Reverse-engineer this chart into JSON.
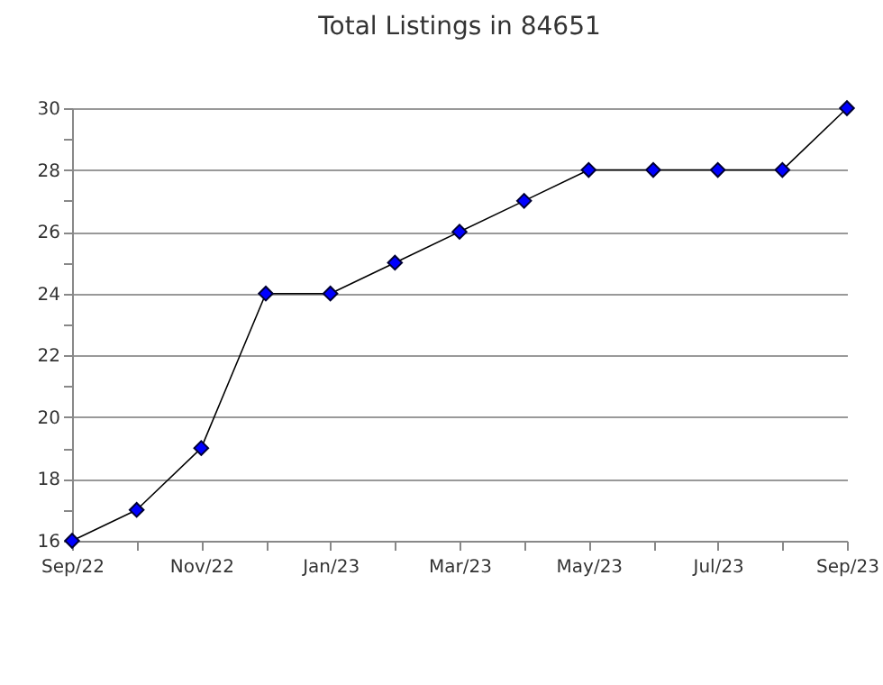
{
  "chart_data": {
    "type": "line",
    "title": "Total Listings in 84651",
    "categories": [
      "Sep/22",
      null,
      "Nov/22",
      null,
      "Jan/23",
      null,
      "Mar/23",
      null,
      "May/23",
      null,
      "Jul/23",
      null,
      "Sep/23"
    ],
    "series": [
      {
        "color": "#0000ff",
        "values": [
          16,
          17,
          19,
          24,
          24,
          25,
          26,
          27,
          28,
          28,
          28,
          28,
          30
        ]
      }
    ],
    "ylim": [
      16,
      30
    ],
    "yticks": [
      16,
      {
        "value": 17,
        "label": null
      },
      18,
      {
        "value": 19,
        "label": null
      },
      20,
      {
        "value": 21,
        "label": null
      },
      22,
      {
        "value": 23,
        "label": null
      },
      24,
      {
        "value": 25,
        "label": null
      },
      26,
      {
        "value": 27,
        "label": null
      },
      28,
      {
        "value": 29,
        "label": null
      },
      30
    ],
    "grid": "y",
    "marker": "diamond",
    "line_style": "solid"
  }
}
